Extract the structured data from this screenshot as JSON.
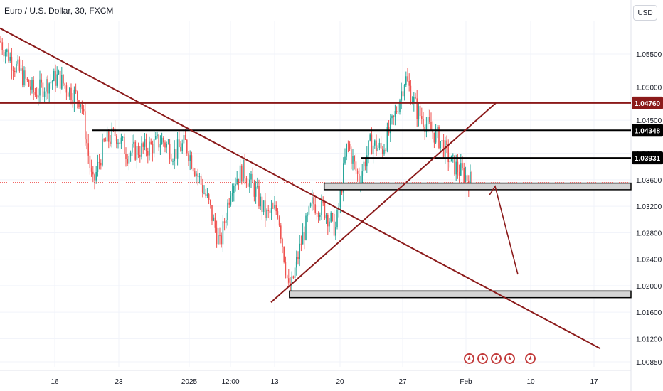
{
  "header": {
    "symbol_title": "Euro / U.S. Dollar, 30, FXCM",
    "currency_button": "USD"
  },
  "event_icons": [
    "flag-icon",
    "flag-icon",
    "flag-icon",
    "flag-icon",
    "flag-icon"
  ],
  "colors": {
    "up_candle": "#26a69a",
    "down_candle": "#ef5350",
    "trendline": "#8b1a1a",
    "level_line": "#000000",
    "zone_fill": "#d4d4d4"
  },
  "chart_data": {
    "type": "candlestick",
    "symbol": "EURUSD",
    "timeframe": "30",
    "ylim": [
      1.0085,
      1.0595
    ],
    "x_ticks": [
      "16",
      "23",
      "2025",
      "12:00",
      "13",
      "20",
      "27",
      "Feb",
      "10",
      "17"
    ],
    "y_ticks": [
      "1.05500",
      "1.05000",
      "1.04500",
      "1.04000",
      "1.03600",
      "1.03200",
      "1.02800",
      "1.02400",
      "1.02000",
      "1.01600",
      "1.01200",
      "1.00850"
    ],
    "price_labels": [
      {
        "text": "1.04760",
        "value": 1.0476,
        "style": "trendline"
      },
      {
        "text": "1.04348",
        "value": 1.04348,
        "style": "level"
      },
      {
        "text": "1.03931",
        "value": 1.03931,
        "style": "level"
      }
    ],
    "horizontal_lines": [
      {
        "value": 1.0476,
        "style": "trendline"
      },
      {
        "value": 1.04348,
        "style": "level"
      },
      {
        "value": 1.03931,
        "style": "level"
      }
    ],
    "zones": [
      {
        "low": 1.0345,
        "high": 1.0355
      },
      {
        "low": 1.0182,
        "high": 1.0192
      }
    ],
    "trendlines": [
      {
        "from": [
          "2024-12-09",
          1.0589
        ],
        "to": [
          "2025-02-13",
          1.0105
        ]
      },
      {
        "from": [
          "2025-01-13",
          1.0175
        ],
        "to": [
          "2025-02-04",
          1.0476
        ]
      }
    ],
    "projection_arrow": [
      [
        "2025-02-04",
        1.0337
      ],
      [
        "2025-02-05",
        1.035
      ],
      [
        "2025-02-08",
        1.0217
      ]
    ],
    "current_price": 1.0356,
    "price_path": [
      [
        "2024-12-09",
        1.057
      ],
      [
        "2024-12-10",
        1.054
      ],
      [
        "2024-12-11",
        1.0515
      ],
      [
        "2024-12-12",
        1.049
      ],
      [
        "2024-12-13",
        1.0505
      ],
      [
        "2024-12-16",
        1.0515
      ],
      [
        "2024-12-17",
        1.0495
      ],
      [
        "2024-12-18",
        1.048
      ],
      [
        "2024-12-19",
        1.035
      ],
      [
        "2024-12-20",
        1.0415
      ],
      [
        "2024-12-23",
        1.043
      ],
      [
        "2024-12-24",
        1.04
      ],
      [
        "2024-12-26",
        1.041
      ],
      [
        "2024-12-27",
        1.042
      ],
      [
        "2024-12-30",
        1.04
      ],
      [
        "2024-12-31",
        1.0415
      ],
      [
        "2025-01-02",
        1.0325
      ],
      [
        "2025-01-03",
        1.026
      ],
      [
        "2025-01-06",
        1.0355
      ],
      [
        "2025-01-07",
        1.0375
      ],
      [
        "2025-01-08",
        1.0345
      ],
      [
        "2025-01-09",
        1.0305
      ],
      [
        "2025-01-10",
        1.0315
      ],
      [
        "2025-01-13",
        1.0185
      ],
      [
        "2025-01-14",
        1.0265
      ],
      [
        "2025-01-15",
        1.0325
      ],
      [
        "2025-01-16",
        1.0315
      ],
      [
        "2025-01-17",
        1.0285
      ],
      [
        "2025-01-20",
        1.0415
      ],
      [
        "2025-01-21",
        1.036
      ],
      [
        "2025-01-22",
        1.0415
      ],
      [
        "2025-01-23",
        1.0405
      ],
      [
        "2025-01-24",
        1.045
      ],
      [
        "2025-01-27",
        1.0515
      ],
      [
        "2025-01-28",
        1.0465
      ],
      [
        "2025-01-29",
        1.044
      ],
      [
        "2025-01-30",
        1.042
      ],
      [
        "2025-01-31",
        1.0385
      ],
      [
        "2025-02-01",
        1.0356
      ]
    ]
  }
}
